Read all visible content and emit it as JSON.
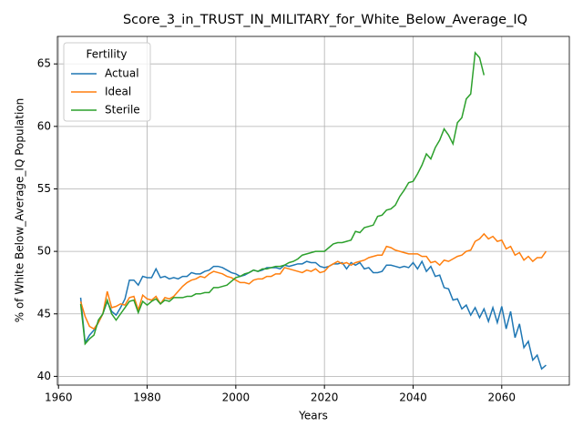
{
  "chart_data": {
    "type": "line",
    "title": "Score_3_in_TRUST_IN_MILITARY_for_White_Below_Average_IQ",
    "xlabel": "Years",
    "ylabel": "% of White Below_Average_IQ Population",
    "legend_title": "Fertility",
    "legend": "upper left",
    "grid": true,
    "xlim": [
      1959.75,
      2075.25
    ],
    "ylim": [
      39.3,
      67.2
    ],
    "xticks": [
      1960,
      1980,
      2000,
      2020,
      2040,
      2060
    ],
    "yticks": [
      40,
      45,
      50,
      55,
      60,
      65
    ],
    "x": [
      1965,
      1966,
      1967,
      1968,
      1969,
      1970,
      1971,
      1972,
      1973,
      1974,
      1975,
      1976,
      1977,
      1978,
      1979,
      1980,
      1981,
      1982,
      1983,
      1984,
      1985,
      1986,
      1987,
      1988,
      1989,
      1990,
      1991,
      1992,
      1993,
      1994,
      1995,
      1996,
      1997,
      1998,
      1999,
      2000,
      2001,
      2002,
      2003,
      2004,
      2005,
      2006,
      2007,
      2008,
      2009,
      2010,
      2011,
      2012,
      2013,
      2014,
      2015,
      2016,
      2017,
      2018,
      2019,
      2020,
      2021,
      2022,
      2023,
      2024,
      2025,
      2026,
      2027,
      2028,
      2029,
      2030,
      2031,
      2032,
      2033,
      2034,
      2035,
      2036,
      2037,
      2038,
      2039,
      2040,
      2041,
      2042,
      2043,
      2044,
      2045,
      2046,
      2047,
      2048,
      2049,
      2050,
      2051,
      2052,
      2053,
      2054,
      2055,
      2056,
      2057,
      2058,
      2059,
      2060,
      2061,
      2062,
      2063,
      2064,
      2065,
      2066,
      2067,
      2068,
      2069,
      2070
    ],
    "series": [
      {
        "name": "Actual",
        "color": "#1f77b4",
        "values": [
          46.3,
          42.7,
          43.3,
          43.7,
          44.3,
          45.0,
          46.0,
          45.2,
          44.9,
          45.5,
          46.2,
          47.7,
          47.7,
          47.3,
          48.0,
          47.9,
          47.9,
          48.6,
          47.9,
          48.0,
          47.8,
          47.9,
          47.8,
          48.0,
          48.0,
          48.3,
          48.2,
          48.2,
          48.4,
          48.5,
          48.8,
          48.8,
          48.7,
          48.5,
          48.3,
          48.2,
          48.0,
          48.1,
          48.3,
          48.5,
          48.4,
          48.5,
          48.7,
          48.7,
          48.7,
          48.6,
          48.9,
          48.8,
          48.9,
          49.0,
          49.0,
          49.2,
          49.1,
          49.1,
          48.8,
          48.7,
          48.8,
          49.0,
          49.0,
          49.1,
          48.6,
          49.1,
          48.9,
          49.1,
          48.6,
          48.7,
          48.3,
          48.3,
          48.4,
          48.9,
          48.9,
          48.8,
          48.7,
          48.8,
          48.7,
          49.1,
          48.6,
          49.2,
          48.4,
          48.8,
          48.0,
          48.1,
          47.1,
          47.0,
          46.1,
          46.2,
          45.4,
          45.7,
          44.9,
          45.5,
          44.7,
          45.4,
          44.4,
          45.5,
          44.3,
          45.6,
          43.8,
          45.2,
          43.1,
          44.2,
          42.3,
          42.8,
          41.3,
          41.7,
          40.6,
          40.9
        ]
      },
      {
        "name": "Ideal",
        "color": "#ff7f0e",
        "values": [
          46.0,
          44.8,
          44.0,
          43.8,
          44.3,
          45.0,
          46.8,
          45.5,
          45.6,
          45.8,
          45.7,
          46.3,
          46.4,
          45.3,
          46.5,
          46.2,
          46.1,
          46.4,
          45.8,
          46.3,
          46.2,
          46.4,
          46.8,
          47.2,
          47.5,
          47.7,
          47.8,
          48.0,
          47.9,
          48.2,
          48.4,
          48.3,
          48.2,
          48.0,
          47.9,
          47.7,
          47.5,
          47.5,
          47.4,
          47.7,
          47.8,
          47.8,
          48.0,
          48.0,
          48.2,
          48.2,
          48.7,
          48.6,
          48.5,
          48.4,
          48.3,
          48.5,
          48.4,
          48.6,
          48.3,
          48.4,
          48.8,
          49.0,
          49.2,
          49.0,
          49.1,
          48.9,
          49.1,
          49.2,
          49.3,
          49.5,
          49.6,
          49.7,
          49.7,
          50.4,
          50.3,
          50.1,
          50.0,
          49.9,
          49.8,
          49.8,
          49.8,
          49.6,
          49.6,
          49.1,
          49.2,
          48.9,
          49.3,
          49.2,
          49.4,
          49.6,
          49.7,
          50.0,
          50.1,
          50.8,
          51.0,
          51.4,
          51.0,
          51.2,
          50.8,
          50.9,
          50.2,
          50.4,
          49.7,
          49.9,
          49.3,
          49.6,
          49.2,
          49.5,
          49.5,
          50.0
        ]
      },
      {
        "name": "Sterile",
        "color": "#2ca02c",
        "values": [
          45.8,
          42.6,
          43.0,
          43.3,
          44.5,
          45.0,
          46.1,
          45.0,
          44.5,
          45.0,
          45.5,
          46.0,
          46.1,
          45.1,
          46.0,
          45.7,
          46.0,
          46.2,
          45.8,
          46.1,
          46.0,
          46.3,
          46.3,
          46.3,
          46.4,
          46.4,
          46.6,
          46.6,
          46.7,
          46.7,
          47.1,
          47.1,
          47.2,
          47.3,
          47.6,
          47.9,
          48.0,
          48.2,
          48.3,
          48.5,
          48.4,
          48.6,
          48.6,
          48.7,
          48.8,
          48.8,
          48.9,
          49.1,
          49.2,
          49.4,
          49.7,
          49.8,
          49.9,
          50.0,
          50.0,
          50.0,
          50.3,
          50.6,
          50.7,
          50.7,
          50.8,
          50.9,
          51.6,
          51.5,
          51.9,
          52.0,
          52.1,
          52.8,
          52.9,
          53.3,
          53.4,
          53.7,
          54.4,
          54.9,
          55.5,
          55.6,
          56.2,
          56.9,
          57.8,
          57.4,
          58.3,
          58.9,
          59.8,
          59.3,
          58.6,
          60.3,
          60.7,
          62.2,
          62.6,
          65.9,
          65.5,
          64.1,
          null,
          null,
          null,
          null,
          null,
          null,
          null,
          null,
          null,
          null,
          null,
          null,
          null,
          null
        ]
      }
    ]
  }
}
